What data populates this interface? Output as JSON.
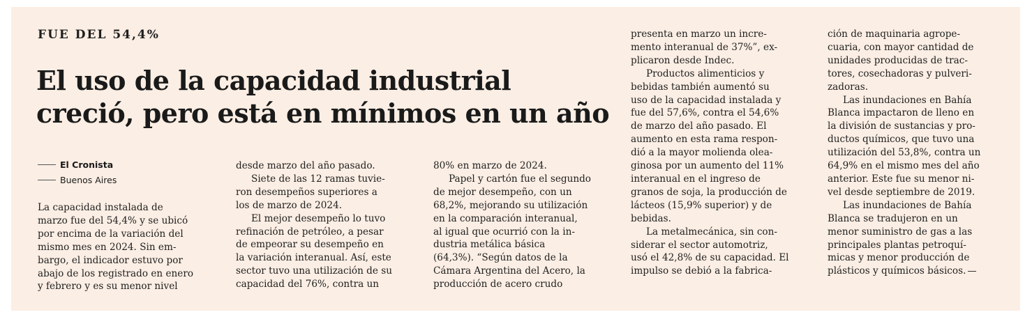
{
  "article": {
    "kicker": "FUE DEL 54,4%",
    "headline_lines": [
      "El uso de la capacidad industrial",
      "creció, pero está en mínimos en un año"
    ],
    "source": "El Cronista",
    "location": "Buenos Aires",
    "columns": [
      [
        {
          "t": "La capacidad instalada de",
          "i": false
        },
        {
          "t": "marzo fue del 54,4% y se ubicó",
          "i": false
        },
        {
          "t": "por encima de la variación del",
          "i": false
        },
        {
          "t": "mismo mes en 2024. Sin em-",
          "i": false
        },
        {
          "t": "bargo, el indicador estuvo por",
          "i": false
        },
        {
          "t": "abajo de los registrado en enero",
          "i": false
        },
        {
          "t": "y febrero y es su menor nivel",
          "i": false
        }
      ],
      [
        {
          "t": "desde marzo del año pasado.",
          "i": false
        },
        {
          "t": "Siete de las 12 ramas tuvie-",
          "i": true
        },
        {
          "t": "ron desempeños superiores a",
          "i": false
        },
        {
          "t": "los de marzo de 2024.",
          "i": false
        },
        {
          "t": "El mejor desempeño lo tuvo",
          "i": true
        },
        {
          "t": "refinación de petróleo, a pesar",
          "i": false
        },
        {
          "t": "de empeorar su desempeño en",
          "i": false
        },
        {
          "t": "la variación interanual. Así, este",
          "i": false
        },
        {
          "t": "sector tuvo una utilización de su",
          "i": false
        },
        {
          "t": "capacidad del 76%, contra un",
          "i": false
        }
      ],
      [
        {
          "t": "80% en marzo de 2024.",
          "i": false
        },
        {
          "t": "Papel y cartón fue el segundo",
          "i": true
        },
        {
          "t": "de mejor desempeño, con un",
          "i": false
        },
        {
          "t": "68,2%, mejorando su utilización",
          "i": false
        },
        {
          "t": "en la comparación interanual,",
          "i": false
        },
        {
          "t": "al igual que ocurrió con la in-",
          "i": false
        },
        {
          "t": "dustria metálica básica",
          "i": false
        },
        {
          "t": "(64,3%). “Según datos de la",
          "i": false
        },
        {
          "t": "Cámara Argentina del Acero, la",
          "i": false
        },
        {
          "t": "producción de acero crudo",
          "i": false
        }
      ],
      [
        {
          "t": "presenta en marzo un incre-",
          "i": false
        },
        {
          "t": "mento interanual de 37%”, ex-",
          "i": false
        },
        {
          "t": "plicaron desde Indec.",
          "i": false
        },
        {
          "t": "Productos alimenticios y",
          "i": true
        },
        {
          "t": "bebidas también aumentó su",
          "i": false
        },
        {
          "t": "uso de la capacidad instalada y",
          "i": false
        },
        {
          "t": "fue del 57,6%, contra el 54,6%",
          "i": false
        },
        {
          "t": "de marzo del año pasado. El",
          "i": false
        },
        {
          "t": "aumento en esta rama respon-",
          "i": false
        },
        {
          "t": "dió a la mayor molienda olea-",
          "i": false
        },
        {
          "t": "ginosa por un aumento del 11%",
          "i": false
        },
        {
          "t": "interanual en el ingreso de",
          "i": false
        },
        {
          "t": "granos de soja, la producción de",
          "i": false
        },
        {
          "t": "lácteos (15,9% superior) y de",
          "i": false
        },
        {
          "t": "bebidas.",
          "i": false
        },
        {
          "t": "La metalmecánica, sin con-",
          "i": true
        },
        {
          "t": "siderar el sector automotriz,",
          "i": false
        },
        {
          "t": "usó el 42,8% de su capacidad. El",
          "i": false
        },
        {
          "t": "impulso se debió a la fabrica-",
          "i": false
        }
      ],
      [
        {
          "t": "ción de maquinaria agrope-",
          "i": false
        },
        {
          "t": "cuaria, con mayor cantidad de",
          "i": false
        },
        {
          "t": "unidades producidas de trac-",
          "i": false
        },
        {
          "t": "tores, cosechadoras y pulveri-",
          "i": false
        },
        {
          "t": "zadoras.",
          "i": false
        },
        {
          "t": "Las inundaciones en Bahía",
          "i": true
        },
        {
          "t": "Blanca impactaron de lleno en",
          "i": false
        },
        {
          "t": "la división de sustancias y pro-",
          "i": false
        },
        {
          "t": "ductos químicos, que tuvo una",
          "i": false
        },
        {
          "t": "utilización del 53,8%, contra un",
          "i": false
        },
        {
          "t": "64,9% en el mismo mes del año",
          "i": false
        },
        {
          "t": "anterior. Este fue su menor ni-",
          "i": false
        },
        {
          "t": "vel desde septiembre de 2019.",
          "i": false
        },
        {
          "t": "Las inundaciones de Bahía",
          "i": true
        },
        {
          "t": "Blanca se tradujeron en un",
          "i": false
        },
        {
          "t": "menor suministro de gas a las",
          "i": false
        },
        {
          "t": "principales plantas petroquí-",
          "i": false
        },
        {
          "t": "micas y menor producción de",
          "i": false
        },
        {
          "t": "plásticos y químicos básicos.",
          "i": false
        }
      ]
    ]
  },
  "colors": {
    "paper": "#fbeee4",
    "ink": "#1f1f1f"
  }
}
